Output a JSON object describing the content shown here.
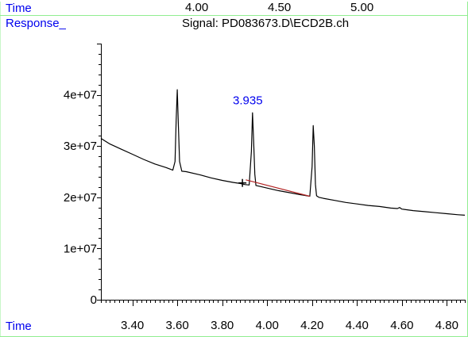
{
  "header": {
    "time_label": "Time",
    "time_ticks": [
      "4.00",
      "4.50",
      "5.00"
    ],
    "response_label": "Response_",
    "signal_title": "Signal: PD083673.D\\ECD2B.ch"
  },
  "footer": {
    "time_label": "Time"
  },
  "colors": {
    "accent": "#0000ee",
    "frame": "#90ee90",
    "trace": "#000000",
    "baseline": "#b22222"
  },
  "chart_data": {
    "type": "line",
    "title": "Signal: PD083673.D\\ECD2B.ch",
    "xlabel": "Time",
    "ylabel": "Response_",
    "xlim": [
      3.26,
      4.88
    ],
    "ylim": [
      0,
      50000000
    ],
    "x_ticks": [
      "3.40",
      "3.60",
      "3.80",
      "4.00",
      "4.20",
      "4.40",
      "4.60",
      "4.80"
    ],
    "y_ticks": [
      "0",
      "1e+07",
      "2e+07",
      "3e+07",
      "4e+07"
    ],
    "series": [
      {
        "x": [
          3.26,
          3.3,
          3.35,
          3.4,
          3.45,
          3.5,
          3.55,
          3.58,
          3.59,
          3.595,
          3.6,
          3.605,
          3.61,
          3.62,
          3.64,
          3.7,
          3.75,
          3.8,
          3.85,
          3.88,
          3.9,
          3.92,
          3.93,
          3.935,
          3.94,
          3.945,
          3.95,
          3.97,
          4.0,
          4.05,
          4.1,
          4.15,
          4.19,
          4.2,
          4.205,
          4.21,
          4.215,
          4.22,
          4.23,
          4.25,
          4.3,
          4.35,
          4.4,
          4.45,
          4.5,
          4.55,
          4.58,
          4.59,
          4.6,
          4.65,
          4.7,
          4.75,
          4.8,
          4.85,
          4.88
        ],
        "y": [
          31500000,
          30400000,
          29400000,
          28400000,
          27400000,
          26500000,
          25800000,
          25300000,
          27000000,
          35000000,
          41000000,
          34000000,
          27000000,
          25100000,
          25000000,
          24400000,
          23800000,
          23300000,
          22900000,
          22700000,
          22500000,
          22400000,
          29000000,
          36500000,
          31000000,
          24500000,
          22300000,
          22100000,
          21800000,
          21300000,
          20900000,
          20500000,
          20200000,
          26000000,
          34000000,
          30000000,
          22500000,
          20300000,
          20000000,
          19800000,
          19400000,
          19000000,
          18700000,
          18400000,
          18200000,
          17900000,
          17800000,
          18000000,
          17700000,
          17400000,
          17200000,
          17000000,
          16800000,
          16600000,
          16500000
        ]
      }
    ],
    "baseline_segment": {
      "x": [
        3.905,
        4.19
      ],
      "y": [
        23400000,
        20200000
      ]
    },
    "marker": {
      "x": 3.89,
      "y": 22800000
    },
    "annotations": [
      {
        "text": "3.935",
        "x": 3.935,
        "y": 38500000
      }
    ]
  }
}
